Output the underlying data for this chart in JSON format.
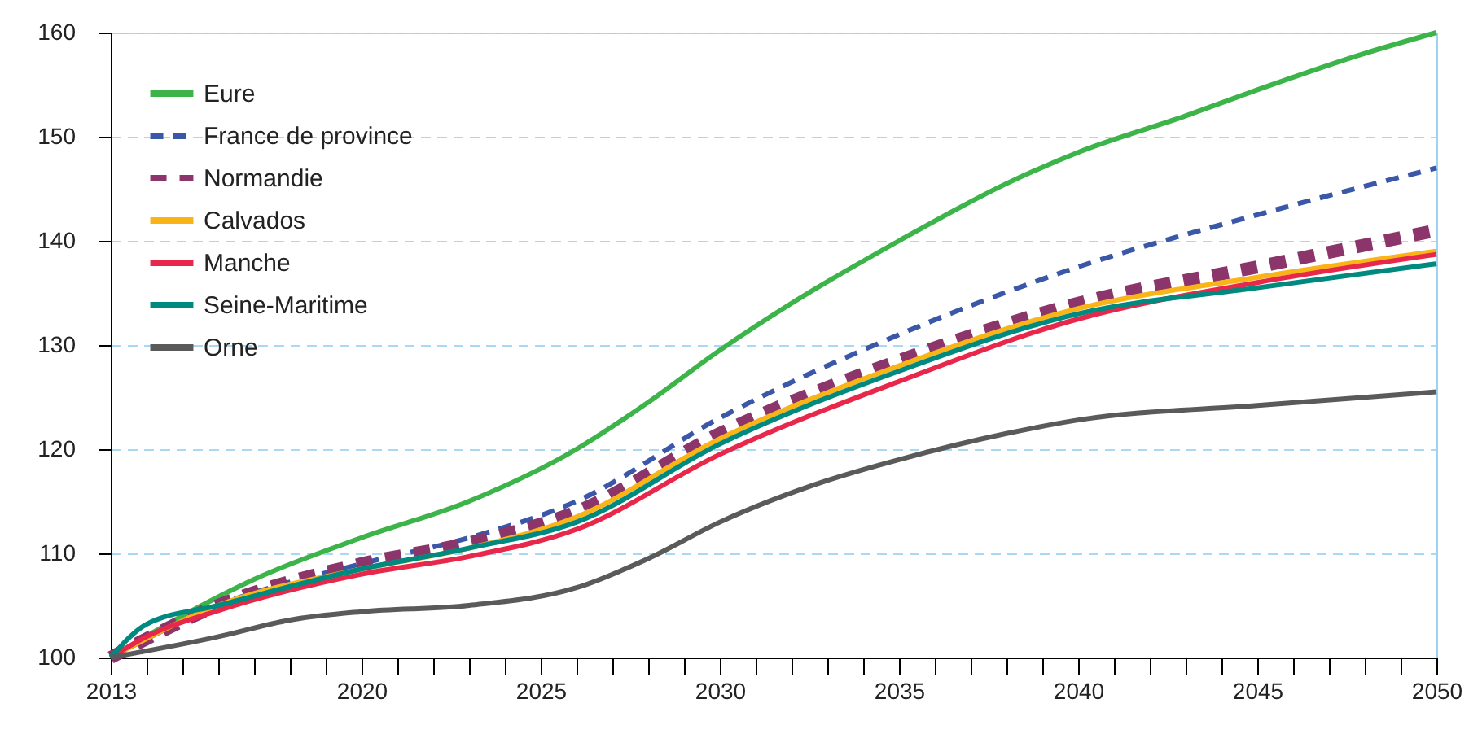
{
  "chart_data": {
    "type": "line",
    "xlim": [
      2013,
      2050
    ],
    "xticks": [
      2013,
      {
        "value": 2014,
        "label": null
      },
      {
        "value": 2015,
        "label": null
      },
      {
        "value": 2016,
        "label": null
      },
      {
        "value": 2017,
        "label": null
      },
      {
        "value": 2018,
        "label": null
      },
      {
        "value": 2019,
        "label": null
      },
      2020,
      {
        "value": 2021,
        "label": null
      },
      {
        "value": 2022,
        "label": null
      },
      {
        "value": 2023,
        "label": null
      },
      {
        "value": 2024,
        "label": null
      },
      2025,
      {
        "value": 2026,
        "label": null
      },
      {
        "value": 2027,
        "label": null
      },
      {
        "value": 2028,
        "label": null
      },
      {
        "value": 2029,
        "label": null
      },
      2030,
      {
        "value": 2031,
        "label": null
      },
      {
        "value": 2032,
        "label": null
      },
      {
        "value": 2033,
        "label": null
      },
      {
        "value": 2034,
        "label": null
      },
      2035,
      {
        "value": 2036,
        "label": null
      },
      {
        "value": 2037,
        "label": null
      },
      {
        "value": 2038,
        "label": null
      },
      {
        "value": 2039,
        "label": null
      },
      2040,
      {
        "value": 2041,
        "label": null
      },
      {
        "value": 2042,
        "label": null
      },
      {
        "value": 2043,
        "label": null
      },
      {
        "value": 2044,
        "label": null
      },
      2045,
      {
        "value": 2046,
        "label": null
      },
      {
        "value": 2047,
        "label": null
      },
      {
        "value": 2048,
        "label": null
      },
      {
        "value": 2049,
        "label": null
      },
      2050
    ],
    "ylim": [
      100,
      160
    ],
    "yticks": [
      100,
      110,
      120,
      130,
      140,
      150,
      160
    ],
    "grid": "y",
    "legend": "top left",
    "series": [
      {
        "name": "Eure",
        "color": "#3cb44a",
        "line_style": "solid",
        "x": [
          2013,
          2015,
          2017,
          2020,
          2023,
          2026,
          2028,
          2030,
          2032,
          2035,
          2038,
          2040,
          2043,
          2045,
          2048,
          2050
        ],
        "values": [
          100,
          104,
          107.5,
          111.5,
          115,
          120,
          124.5,
          129.5,
          134,
          140,
          145.5,
          148.5,
          152,
          154.5,
          158,
          160
        ]
      },
      {
        "name": "France de province",
        "color": "#3a57a8",
        "line_style": "dashed",
        "x": [
          2013,
          2016,
          2020,
          2023,
          2026,
          2030,
          2035,
          2040,
          2045,
          2050
        ],
        "values": [
          100,
          105,
          109,
          111.5,
          115,
          123,
          131,
          137.5,
          142.5,
          147
        ]
      },
      {
        "name": "Normandie",
        "color": "#8b356b",
        "line_style": "dotted",
        "x": [
          2013,
          2016,
          2020,
          2023,
          2026,
          2030,
          2035,
          2040,
          2045,
          2050
        ],
        "values": [
          100,
          105,
          109,
          111,
          114,
          121.5,
          128.5,
          134,
          137.5,
          141
        ]
      },
      {
        "name": "Calvados",
        "color": "#f9b418",
        "line_style": "solid",
        "x": [
          2013,
          2016,
          2020,
          2023,
          2026,
          2030,
          2035,
          2040,
          2045,
          2050
        ],
        "values": [
          100,
          105,
          108.5,
          110.5,
          113.5,
          121,
          128,
          133.5,
          136.5,
          139
        ]
      },
      {
        "name": "Manche",
        "color": "#e8284a",
        "line_style": "solid",
        "x": [
          2013,
          2014,
          2016,
          2020,
          2023,
          2026,
          2030,
          2035,
          2040,
          2045,
          2050
        ],
        "values": [
          100,
          102,
          104.5,
          108,
          109.7,
          112.3,
          119.5,
          126.5,
          132.5,
          136,
          138.7
        ]
      },
      {
        "name": "Seine-Maritime",
        "color": "#00897f",
        "line_style": "solid",
        "x": [
          2013,
          2014,
          2016,
          2020,
          2023,
          2026,
          2030,
          2035,
          2040,
          2045,
          2050
        ],
        "values": [
          100,
          103.2,
          105,
          108.5,
          110.5,
          113,
          120.5,
          127.5,
          133,
          135.5,
          137.8
        ]
      },
      {
        "name": "Orne",
        "color": "#5a5a5a",
        "line_style": "solid",
        "x": [
          2013,
          2016,
          2018,
          2020,
          2023,
          2026,
          2028,
          2030,
          2033,
          2035,
          2038,
          2040,
          2045,
          2050
        ],
        "values": [
          100,
          102,
          103.6,
          104.4,
          105,
          106.7,
          109.5,
          113,
          117,
          119,
          121.5,
          122.8,
          124.2,
          125.5
        ]
      }
    ]
  }
}
